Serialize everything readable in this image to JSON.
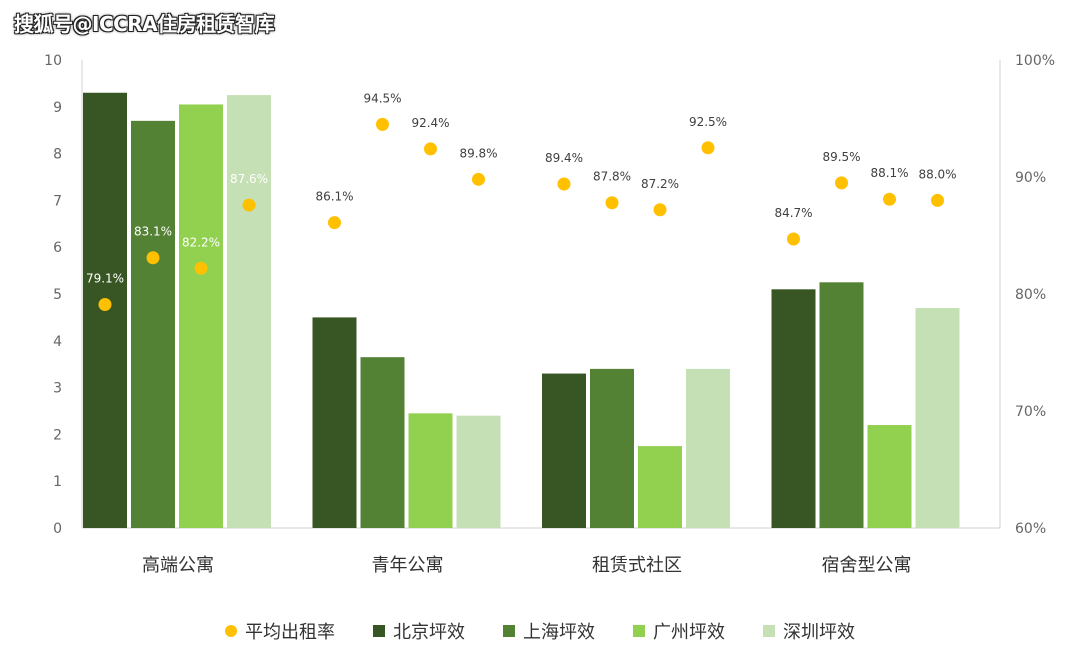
{
  "watermark": "搜狐号@ICCRA住房租赁智库",
  "chart_data": {
    "type": "bar",
    "categories": [
      "高端公寓",
      "青年公寓",
      "租赁式社区",
      "宿舍型公寓"
    ],
    "series": [
      {
        "name": "北京坪效",
        "color": "#375623",
        "values": [
          9.3,
          4.5,
          3.3,
          5.1
        ]
      },
      {
        "name": "上海坪效",
        "color": "#548235",
        "values": [
          8.7,
          3.65,
          3.4,
          5.25
        ]
      },
      {
        "name": "广州坪效",
        "color": "#92d050",
        "values": [
          9.05,
          2.45,
          1.75,
          2.2
        ]
      },
      {
        "name": "深圳坪效",
        "color": "#c5e0b4",
        "values": [
          9.25,
          2.4,
          3.4,
          4.7
        ]
      }
    ],
    "rate_series": {
      "name": "平均出租率",
      "color": "#ffc000",
      "values": [
        [
          79.1,
          83.1,
          82.2,
          87.6
        ],
        [
          86.1,
          94.5,
          92.4,
          89.8
        ],
        [
          89.4,
          87.8,
          87.2,
          92.5
        ],
        [
          84.7,
          89.5,
          88.1,
          88.0
        ]
      ],
      "labels": [
        [
          "79.1%",
          "83.1%",
          "82.2%",
          "87.6%"
        ],
        [
          "86.1%",
          "94.5%",
          "92.4%",
          "89.8%"
        ],
        [
          "89.4%",
          "87.8%",
          "87.2%",
          "92.5%"
        ],
        [
          "84.7%",
          "89.5%",
          "88.1%",
          "88.0%"
        ]
      ]
    },
    "ylim": [
      0,
      10
    ],
    "yticks": [
      "0",
      "1",
      "2",
      "3",
      "4",
      "5",
      "6",
      "7",
      "8",
      "9",
      "10"
    ],
    "y2lim": [
      60,
      100
    ],
    "y2ticks": [
      "60%",
      "70%",
      "80%",
      "90%",
      "100%"
    ],
    "legend_position": "bottom"
  },
  "legend": [
    "平均出租率",
    "北京坪效",
    "上海坪效",
    "广州坪效",
    "深圳坪效"
  ]
}
